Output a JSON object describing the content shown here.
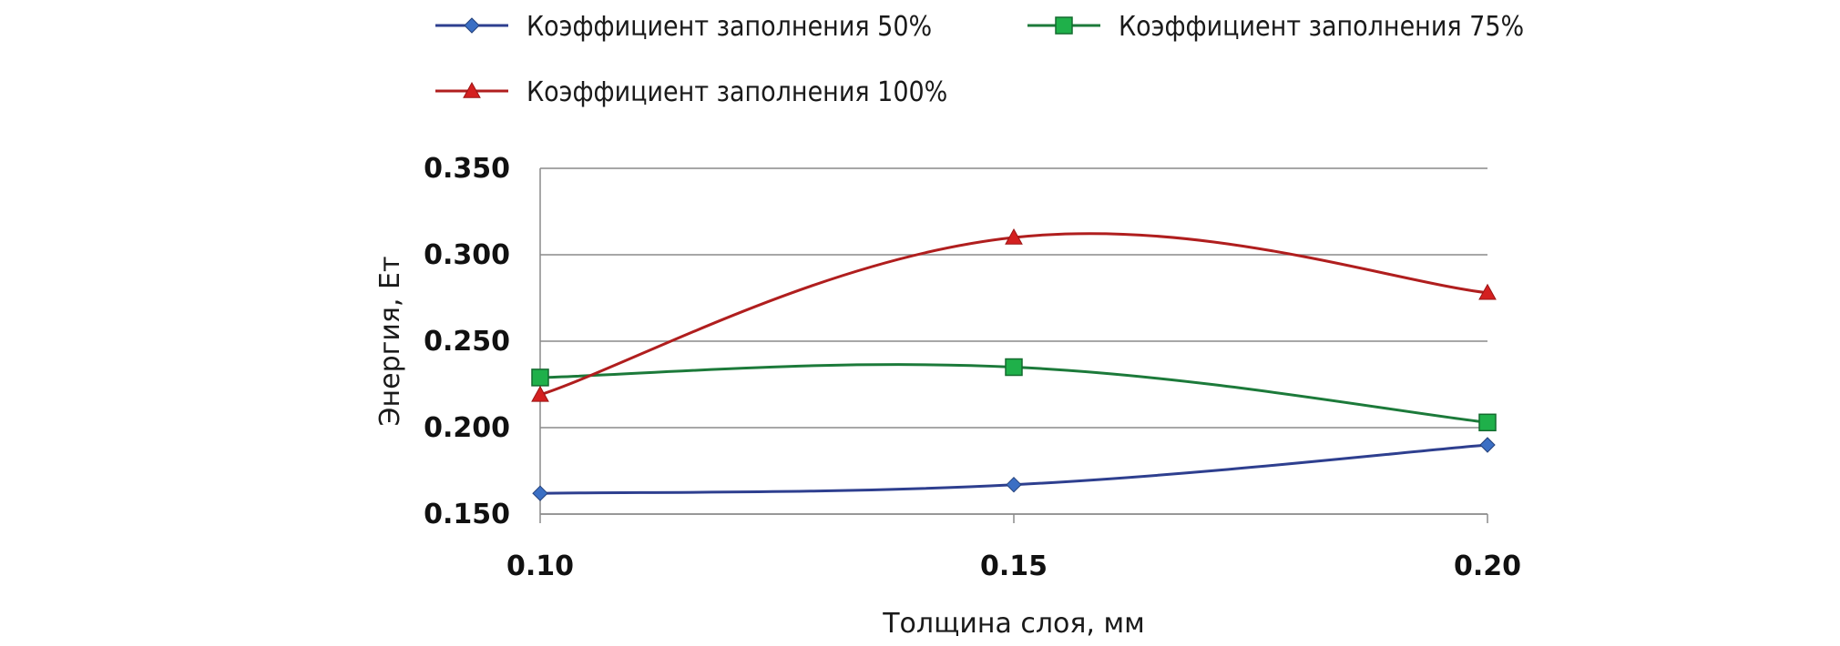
{
  "chart_data": {
    "type": "line",
    "title": "",
    "xlabel": "Толщина слоя, мм",
    "ylabel": "Энергия, Ет",
    "categories": [
      "0.10",
      "0.15",
      "0.20"
    ],
    "x": [
      0.1,
      0.15,
      0.2
    ],
    "ylim": [
      0.15,
      0.35
    ],
    "yticks": [
      "0.350",
      "0.300",
      "0.250",
      "0.200",
      "0.150"
    ],
    "ytick_values": [
      0.35,
      0.3,
      0.25,
      0.2,
      0.15
    ],
    "grid": true,
    "legend_position": "top",
    "series": [
      {
        "name": "Коэффициент заполнения 50%",
        "values": [
          0.162,
          0.167,
          0.19
        ],
        "color": "#2e3f8f",
        "marker_color": "#3b6fc4",
        "marker": "diamond"
      },
      {
        "name": "Коэффициент заполнения 75%",
        "values": [
          0.229,
          0.235,
          0.203
        ],
        "color": "#1c7a3a",
        "marker_color": "#1fb04a",
        "marker": "square"
      },
      {
        "name": "Коэффициент заполнения 100%",
        "values": [
          0.219,
          0.31,
          0.278
        ],
        "color": "#b01e1e",
        "marker_color": "#d42020",
        "marker": "triangle"
      }
    ]
  }
}
